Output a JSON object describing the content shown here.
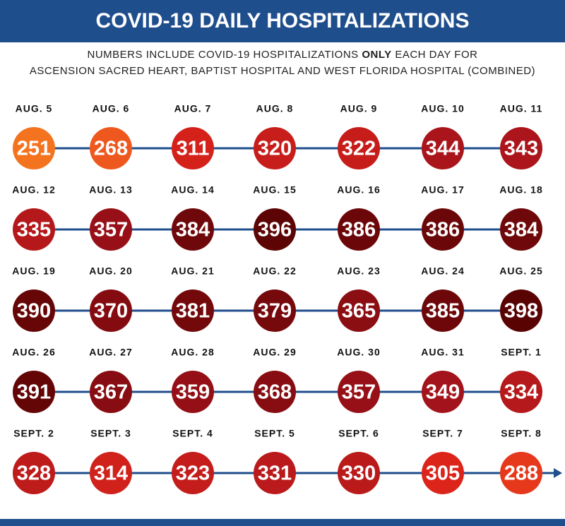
{
  "chart_data": {
    "type": "timeline",
    "title": "COVID-19 DAILY HOSPITALIZATIONS",
    "subtitle": {
      "before": "NUMBERS INCLUDE COVID-19 HOSPITALIZATIONS ",
      "emphasis": "ONLY",
      "after": " EACH DAY FOR",
      "line2": "ASCENSION SACRED HEART, BAPTIST HOSPITAL AND WEST FLORIDA HOSPITAL (COMBINED)"
    },
    "categories": [
      "AUG. 5",
      "AUG. 6",
      "AUG. 7",
      "AUG. 8",
      "AUG. 9",
      "AUG. 10",
      "AUG. 11",
      "AUG. 12",
      "AUG. 13",
      "AUG. 14",
      "AUG. 15",
      "AUG. 16",
      "AUG. 17",
      "AUG. 18",
      "AUG. 19",
      "AUG. 20",
      "AUG. 21",
      "AUG. 22",
      "AUG. 23",
      "AUG. 24",
      "AUG. 25",
      "AUG. 26",
      "AUG. 27",
      "AUG. 28",
      "AUG. 29",
      "AUG. 30",
      "AUG. 31",
      "SEPT. 1",
      "SEPT. 2",
      "SEPT. 3",
      "SEPT. 4",
      "SEPT. 5",
      "SEPT. 6",
      "SEPT. 7",
      "SEPT. 8"
    ],
    "values": [
      251,
      268,
      311,
      320,
      322,
      344,
      343,
      335,
      357,
      384,
      396,
      386,
      386,
      384,
      390,
      370,
      381,
      379,
      365,
      385,
      398,
      391,
      367,
      359,
      368,
      357,
      349,
      334,
      328,
      314,
      323,
      331,
      330,
      305,
      288
    ],
    "colors": [
      "#f4731f",
      "#e2261b",
      "#a3131b",
      "#5a0303"
    ],
    "line_color": "#1f4e8c"
  }
}
